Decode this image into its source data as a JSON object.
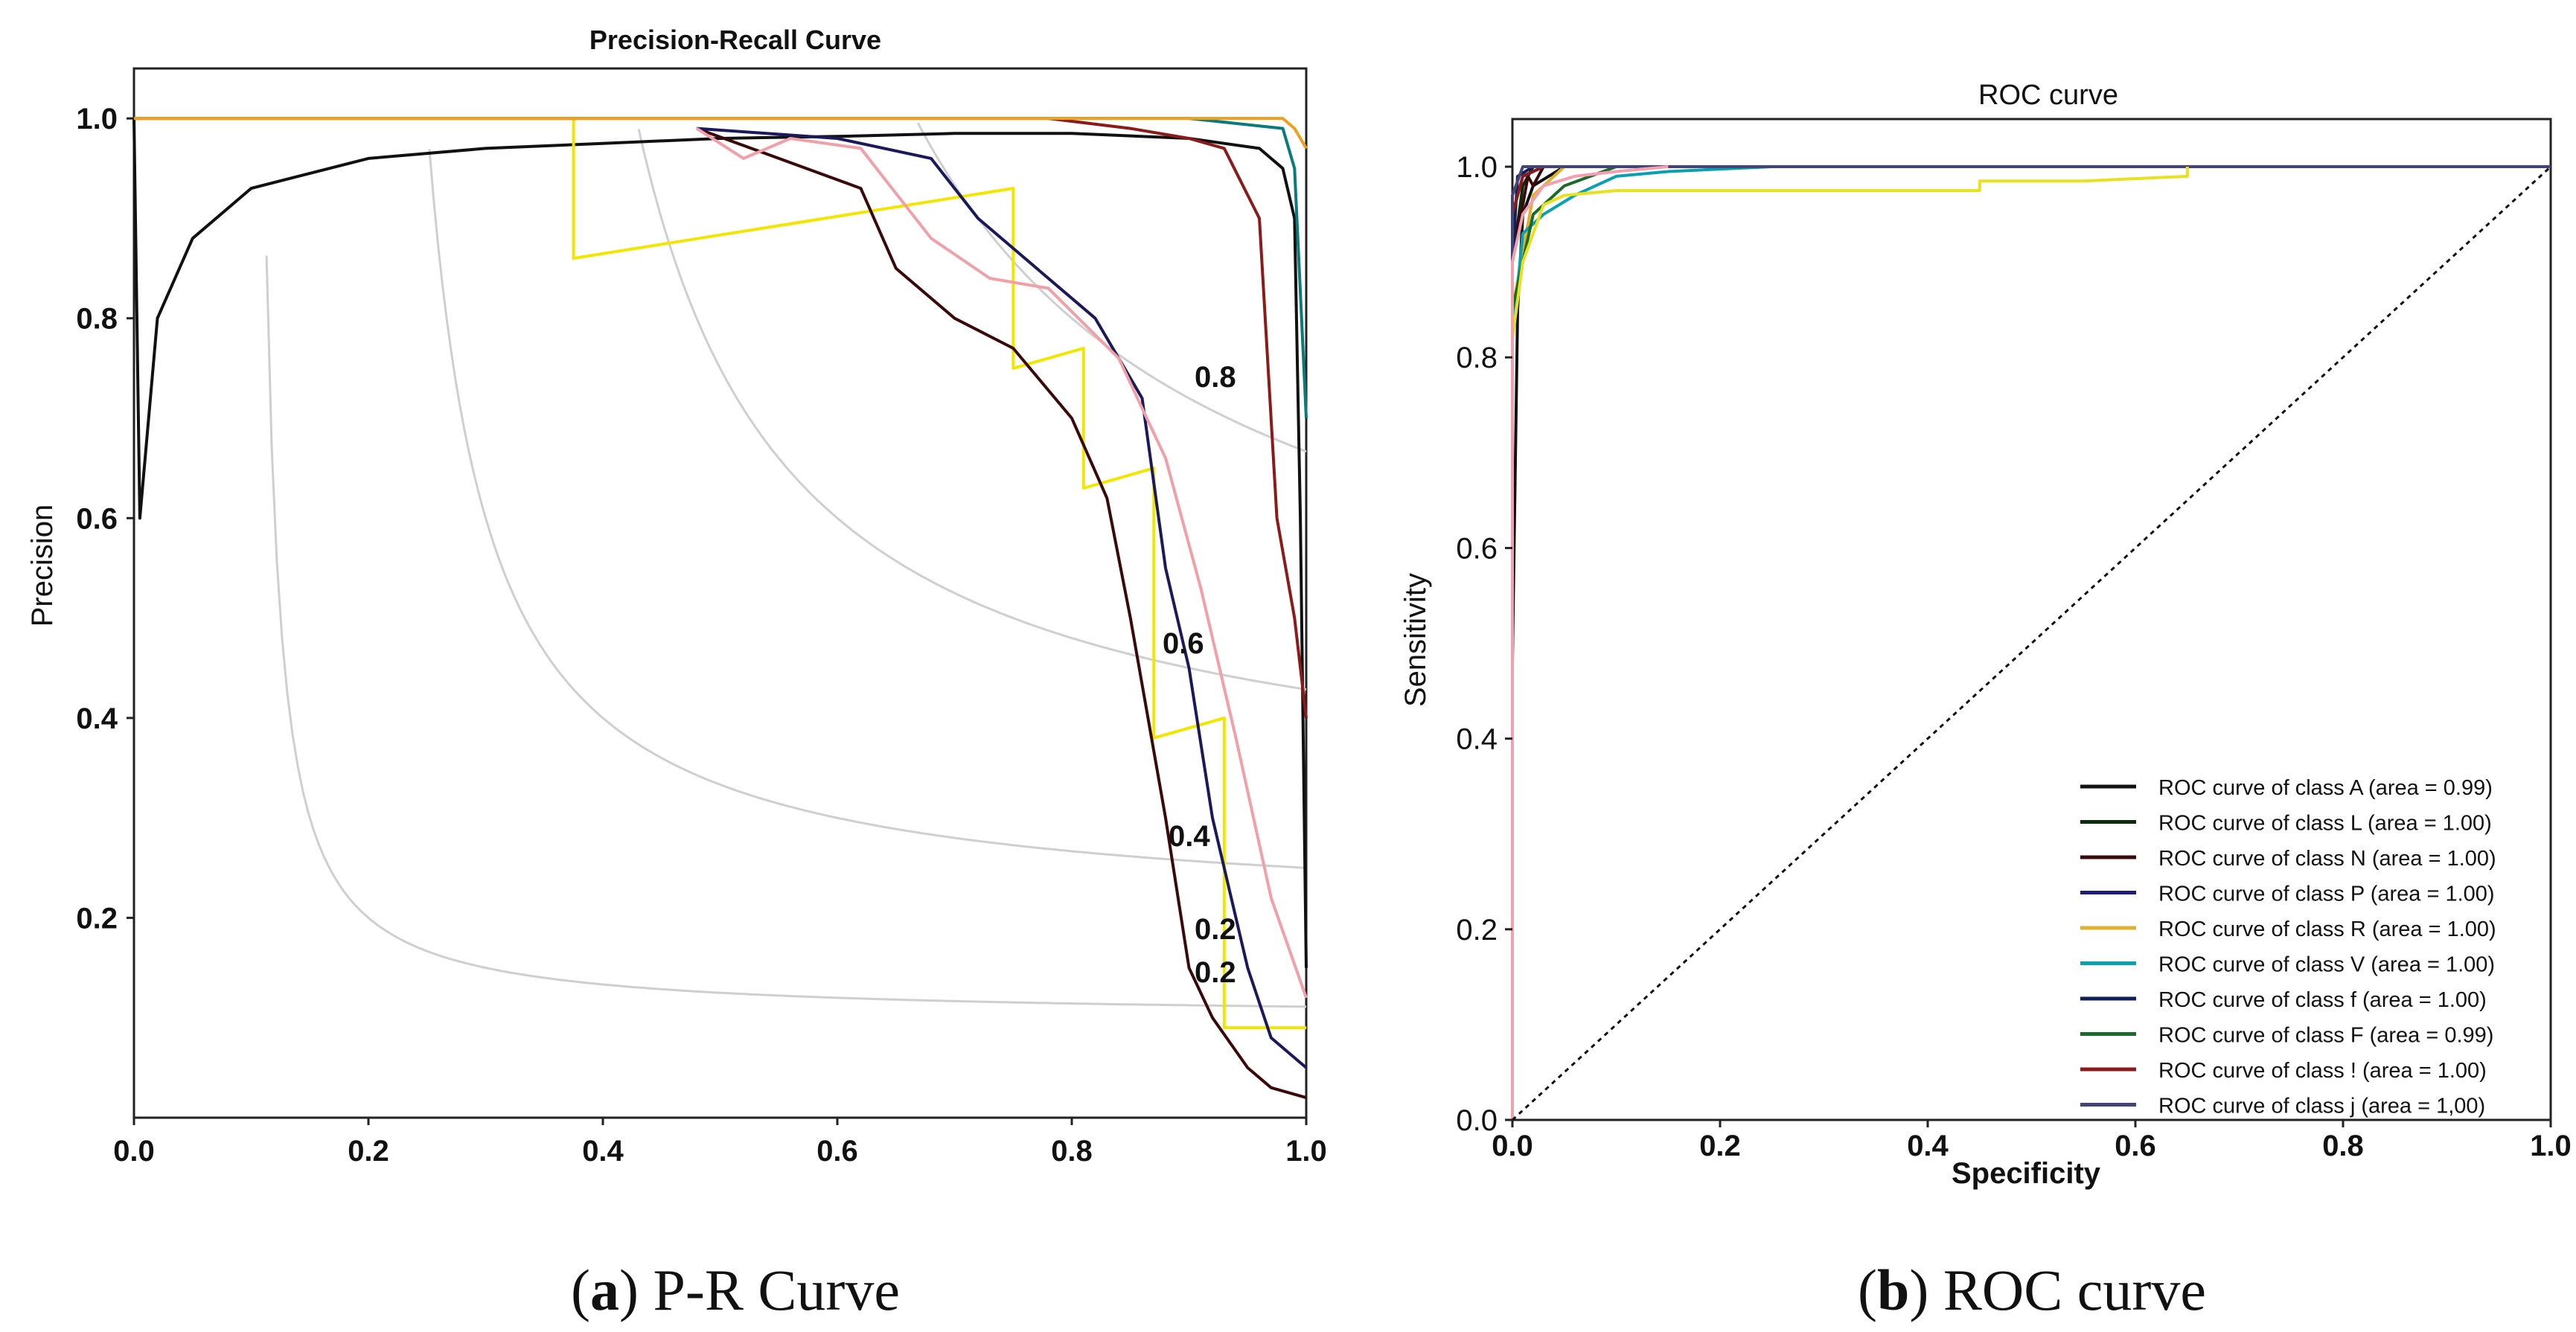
{
  "charts": {
    "pr": {
      "type": "line",
      "title": "Precision-Recall Curve",
      "ylabel": "Precision",
      "x_ticks": [
        "0.0",
        "0.2",
        "0.4",
        "0.6",
        "0.8",
        "1.0"
      ],
      "y_ticks": [
        "1.0",
        "0.8",
        "0.6",
        "0.4",
        "0.2"
      ],
      "iso_labels": [
        "0.8",
        "0.6",
        "0.4",
        "0.2",
        "0.2"
      ],
      "caption_letter": "a",
      "caption_text": "P-R Curve"
    },
    "roc": {
      "type": "line",
      "title": "ROC curve",
      "xlabel": "Specificity",
      "ylabel": "Sensitivity",
      "x_ticks": [
        "0.0",
        "0.2",
        "0.4",
        "0.6",
        "0.8",
        "1.0"
      ],
      "y_ticks": [
        "1.0",
        "0.8",
        "0.6",
        "0.4",
        "0.2",
        "0.0"
      ],
      "legend": [
        "ROC curve of class A (area = 0.99)",
        "ROC curve of class L (area = 1.00)",
        "ROC curve of class N (area = 1.00)",
        "ROC curve of class P (area = 1.00)",
        "ROC curve of class R (area = 1.00)",
        "ROC curve of class V (area = 1.00)",
        "ROC curve of class f (area = 1.00)",
        "ROC curve of class F (area = 0.99)",
        "ROC curve of class ! (area = 1.00)",
        "ROC curve of class j (area = 1,00)"
      ],
      "caption_letter": "b",
      "caption_text": "ROC curve"
    }
  },
  "chart_data": [
    {
      "type": "line",
      "title": "Precision-Recall Curve",
      "xlabel": "",
      "ylabel": "Precision",
      "xlim": [
        0,
        1
      ],
      "ylim": [
        0,
        1.05
      ],
      "iso_f1": [
        0.2,
        0.4,
        0.6,
        0.8
      ],
      "series": [
        {
          "name": "black",
          "color": "#111111",
          "x": [
            0,
            0.005,
            0.02,
            0.05,
            0.1,
            0.2,
            0.3,
            0.4,
            0.5,
            0.6,
            0.7,
            0.8,
            0.9,
            0.96,
            0.98,
            0.99,
            0.995,
            1.0
          ],
          "y": [
            1.0,
            0.6,
            0.8,
            0.88,
            0.93,
            0.96,
            0.97,
            0.975,
            0.98,
            0.982,
            0.985,
            0.985,
            0.98,
            0.97,
            0.95,
            0.9,
            0.6,
            0.15
          ]
        },
        {
          "name": "yellow",
          "color": "#f2e600",
          "x": [
            0,
            0.375,
            0.375,
            0.75,
            0.75,
            0.81,
            0.81,
            0.87,
            0.87,
            0.93,
            0.93,
            1.0
          ],
          "y": [
            1.0,
            1.0,
            0.86,
            0.93,
            0.75,
            0.77,
            0.63,
            0.65,
            0.38,
            0.4,
            0.09,
            0.09
          ]
        },
        {
          "name": "dark-red step",
          "color": "#3a0a0a",
          "x": [
            0.48,
            0.62,
            0.65,
            0.7,
            0.75,
            0.8,
            0.83,
            0.85,
            0.88,
            0.9,
            0.92,
            0.95,
            0.97,
            1.0
          ],
          "y": [
            0.99,
            0.93,
            0.85,
            0.8,
            0.77,
            0.7,
            0.62,
            0.5,
            0.3,
            0.15,
            0.1,
            0.05,
            0.03,
            0.02
          ]
        },
        {
          "name": "navy step",
          "color": "#1a1a5a",
          "x": [
            0.48,
            0.6,
            0.68,
            0.72,
            0.78,
            0.82,
            0.86,
            0.88,
            0.9,
            0.92,
            0.95,
            0.97,
            1.0
          ],
          "y": [
            0.99,
            0.98,
            0.96,
            0.9,
            0.84,
            0.8,
            0.72,
            0.55,
            0.45,
            0.3,
            0.15,
            0.08,
            0.05
          ]
        },
        {
          "name": "pink step",
          "color": "#f0a0a8",
          "x": [
            0.48,
            0.52,
            0.56,
            0.62,
            0.68,
            0.73,
            0.78,
            0.84,
            0.88,
            0.91,
            0.94,
            0.97,
            1.0
          ],
          "y": [
            0.99,
            0.96,
            0.98,
            0.97,
            0.88,
            0.84,
            0.83,
            0.76,
            0.66,
            0.53,
            0.38,
            0.22,
            0.12
          ]
        },
        {
          "name": "red",
          "color": "#8b1a1a",
          "x": [
            0.0,
            0.78,
            0.85,
            0.9,
            0.93,
            0.96,
            0.975,
            0.99,
            1.0
          ],
          "y": [
            1.0,
            1.0,
            0.99,
            0.98,
            0.97,
            0.9,
            0.6,
            0.5,
            0.4
          ]
        },
        {
          "name": "teal",
          "color": "#0a7a7a",
          "x": [
            0.0,
            0.9,
            0.98,
            0.99,
            1.0
          ],
          "y": [
            1.0,
            1.0,
            0.99,
            0.95,
            0.7
          ]
        },
        {
          "name": "orange",
          "color": "#f0a020",
          "x": [
            0.0,
            0.98,
            0.99,
            1.0
          ],
          "y": [
            1.0,
            1.0,
            0.99,
            0.97
          ]
        }
      ]
    },
    {
      "type": "line",
      "title": "ROC curve",
      "xlabel": "Specificity",
      "ylabel": "Sensitivity",
      "xlim": [
        0,
        1
      ],
      "ylim": [
        0,
        1.05
      ],
      "series": [
        {
          "name": "ROC curve of class A (area = 0.99)",
          "color": "#111111",
          "x": [
            0,
            0.0,
            0.005,
            0.01,
            0.02,
            0.05,
            1.0
          ],
          "y": [
            0,
            0.48,
            0.85,
            0.95,
            0.98,
            1.0,
            1.0
          ]
        },
        {
          "name": "ROC curve of class L (area = 1.00)",
          "color": "#0d2b0d",
          "x": [
            0,
            0.0,
            0.01,
            0.02,
            1.0
          ],
          "y": [
            0,
            0.9,
            0.98,
            1.0,
            1.0
          ]
        },
        {
          "name": "ROC curve of class N (area = 1.00)",
          "color": "#3a0a0a",
          "x": [
            0,
            0.0,
            0.01,
            0.015,
            0.02,
            0.03,
            1.0
          ],
          "y": [
            0,
            0.92,
            0.96,
            0.99,
            0.98,
            1.0,
            1.0
          ]
        },
        {
          "name": "ROC curve of class P (area = 1.00)",
          "color": "#1e1e7a",
          "x": [
            0,
            0.0,
            0.01,
            0.03,
            1.0
          ],
          "y": [
            0,
            0.95,
            0.99,
            1.0,
            1.0
          ]
        },
        {
          "name": "ROC curve of class R (area = 1.00)",
          "color": "#e0b030",
          "x": [
            0,
            0.0,
            0.02,
            0.05,
            1.0
          ],
          "y": [
            0,
            0.85,
            0.97,
            1.0,
            1.0
          ]
        },
        {
          "name": "ROC curve of class V (area = 1.00)",
          "color": "#0aa0b0",
          "x": [
            0,
            0.0,
            0.01,
            0.03,
            0.06,
            0.1,
            0.15,
            0.25
          ],
          "y": [
            0,
            0.82,
            0.93,
            0.95,
            0.97,
            0.99,
            0.995,
            1.0
          ]
        },
        {
          "name": "ROC curve of class f (area = 1.00)",
          "color": "#0f1f5a",
          "x": [
            0,
            0.0,
            0.005,
            0.02,
            1.0
          ],
          "y": [
            0,
            0.9,
            0.99,
            1.0,
            1.0
          ]
        },
        {
          "name": "ROC curve of class F (area = 0.99)",
          "color": "#1a6a2a",
          "x": [
            0,
            0.0,
            0.02,
            0.05,
            0.1,
            1.0
          ],
          "y": [
            0,
            0.85,
            0.95,
            0.98,
            1.0,
            1.0
          ]
        },
        {
          "name": "ROC curve of class ! (area = 1.00)",
          "color": "#8b1a1a",
          "x": [
            0,
            0.0,
            0.01,
            0.03,
            1.0
          ],
          "y": [
            0,
            0.95,
            0.99,
            1.0,
            1.0
          ]
        },
        {
          "name": "ROC curve of class j (area = 1,00)",
          "color": "#444477",
          "x": [
            0,
            0.0,
            0.01,
            1.0
          ],
          "y": [
            0,
            0.97,
            1.0,
            1.0
          ]
        },
        {
          "name": "yellow tail",
          "color": "#e8e020",
          "x": [
            0,
            0.0,
            0.01,
            0.02,
            0.03,
            0.05,
            0.1,
            0.2,
            0.3,
            0.45,
            0.45,
            0.55,
            0.65,
            0.65
          ],
          "y": [
            0,
            0.82,
            0.9,
            0.93,
            0.96,
            0.97,
            0.975,
            0.975,
            0.975,
            0.975,
            0.985,
            0.985,
            0.99,
            1.0
          ]
        },
        {
          "name": "pink",
          "color": "#f0a0b0",
          "x": [
            0,
            0.0,
            0.01,
            0.03,
            0.06,
            0.1,
            0.15
          ],
          "y": [
            0,
            0.9,
            0.95,
            0.98,
            0.99,
            0.995,
            1.0
          ]
        },
        {
          "name": "diagonal",
          "color": "#111111",
          "dashed": true,
          "x": [
            0,
            1
          ],
          "y": [
            0,
            1
          ]
        }
      ]
    }
  ]
}
